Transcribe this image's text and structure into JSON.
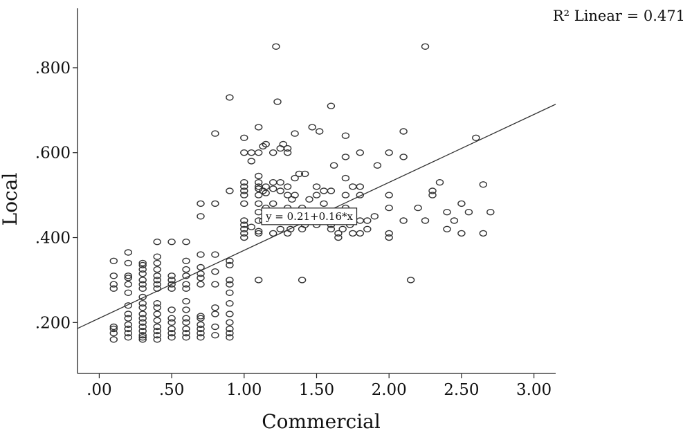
{
  "chart_data": {
    "type": "scatter",
    "xlabel": "Commercial",
    "ylabel": "Local",
    "xlim": [
      -0.15,
      3.15
    ],
    "ylim": [
      0.08,
      0.94
    ],
    "x_ticks": [
      0,
      0.5,
      1.0,
      1.5,
      2.0,
      2.5,
      3.0
    ],
    "x_tick_labels": [
      ".00",
      ".50",
      "1.00",
      "1.50",
      "2.00",
      "2.50",
      "3.00"
    ],
    "y_ticks": [
      0.2,
      0.4,
      0.6,
      0.8
    ],
    "y_tick_labels": [
      ".200",
      ".400",
      ".600",
      ".800"
    ],
    "grid": false,
    "fit_line": {
      "intercept": 0.21,
      "slope": 0.16,
      "label": "y = 0.21+0.16*x",
      "label_at": [
        1.45,
        0.45
      ]
    },
    "r2_label": "R² Linear = 0.471",
    "colors": {
      "marker": "#333333",
      "line": "#333333"
    },
    "points": [
      [
        0.1,
        0.16
      ],
      [
        0.1,
        0.175
      ],
      [
        0.1,
        0.185
      ],
      [
        0.1,
        0.19
      ],
      [
        0.1,
        0.28
      ],
      [
        0.1,
        0.29
      ],
      [
        0.1,
        0.31
      ],
      [
        0.1,
        0.345
      ],
      [
        0.2,
        0.165
      ],
      [
        0.2,
        0.175
      ],
      [
        0.2,
        0.185
      ],
      [
        0.2,
        0.195
      ],
      [
        0.2,
        0.21
      ],
      [
        0.2,
        0.22
      ],
      [
        0.2,
        0.24
      ],
      [
        0.2,
        0.27
      ],
      [
        0.2,
        0.29
      ],
      [
        0.2,
        0.305
      ],
      [
        0.2,
        0.31
      ],
      [
        0.2,
        0.34
      ],
      [
        0.2,
        0.365
      ],
      [
        0.3,
        0.16
      ],
      [
        0.3,
        0.165
      ],
      [
        0.3,
        0.17
      ],
      [
        0.3,
        0.18
      ],
      [
        0.3,
        0.19
      ],
      [
        0.3,
        0.2
      ],
      [
        0.3,
        0.21
      ],
      [
        0.3,
        0.22
      ],
      [
        0.3,
        0.235
      ],
      [
        0.3,
        0.245
      ],
      [
        0.3,
        0.26
      ],
      [
        0.3,
        0.28
      ],
      [
        0.3,
        0.29
      ],
      [
        0.3,
        0.3
      ],
      [
        0.3,
        0.315
      ],
      [
        0.3,
        0.325
      ],
      [
        0.3,
        0.335
      ],
      [
        0.3,
        0.34
      ],
      [
        0.4,
        0.16
      ],
      [
        0.4,
        0.17
      ],
      [
        0.4,
        0.18
      ],
      [
        0.4,
        0.19
      ],
      [
        0.4,
        0.205
      ],
      [
        0.4,
        0.22
      ],
      [
        0.4,
        0.235
      ],
      [
        0.4,
        0.245
      ],
      [
        0.4,
        0.28
      ],
      [
        0.4,
        0.29
      ],
      [
        0.4,
        0.3
      ],
      [
        0.4,
        0.31
      ],
      [
        0.4,
        0.325
      ],
      [
        0.4,
        0.34
      ],
      [
        0.4,
        0.355
      ],
      [
        0.4,
        0.39
      ],
      [
        0.5,
        0.165
      ],
      [
        0.5,
        0.175
      ],
      [
        0.5,
        0.185
      ],
      [
        0.5,
        0.2
      ],
      [
        0.5,
        0.21
      ],
      [
        0.5,
        0.23
      ],
      [
        0.5,
        0.28
      ],
      [
        0.5,
        0.29
      ],
      [
        0.5,
        0.3
      ],
      [
        0.5,
        0.31
      ],
      [
        0.5,
        0.39
      ],
      [
        0.6,
        0.165
      ],
      [
        0.6,
        0.175
      ],
      [
        0.6,
        0.185
      ],
      [
        0.6,
        0.2
      ],
      [
        0.6,
        0.21
      ],
      [
        0.6,
        0.23
      ],
      [
        0.6,
        0.25
      ],
      [
        0.6,
        0.28
      ],
      [
        0.6,
        0.29
      ],
      [
        0.6,
        0.31
      ],
      [
        0.6,
        0.325
      ],
      [
        0.6,
        0.345
      ],
      [
        0.6,
        0.39
      ],
      [
        0.7,
        0.165
      ],
      [
        0.7,
        0.175
      ],
      [
        0.7,
        0.185
      ],
      [
        0.7,
        0.195
      ],
      [
        0.7,
        0.21
      ],
      [
        0.7,
        0.215
      ],
      [
        0.7,
        0.29
      ],
      [
        0.7,
        0.305
      ],
      [
        0.7,
        0.315
      ],
      [
        0.7,
        0.33
      ],
      [
        0.7,
        0.36
      ],
      [
        0.7,
        0.45
      ],
      [
        0.7,
        0.48
      ],
      [
        0.8,
        0.17
      ],
      [
        0.8,
        0.19
      ],
      [
        0.8,
        0.22
      ],
      [
        0.8,
        0.235
      ],
      [
        0.8,
        0.29
      ],
      [
        0.8,
        0.32
      ],
      [
        0.8,
        0.36
      ],
      [
        0.8,
        0.48
      ],
      [
        0.8,
        0.645
      ],
      [
        0.9,
        0.165
      ],
      [
        0.9,
        0.175
      ],
      [
        0.9,
        0.185
      ],
      [
        0.9,
        0.2
      ],
      [
        0.9,
        0.22
      ],
      [
        0.9,
        0.245
      ],
      [
        0.9,
        0.27
      ],
      [
        0.9,
        0.29
      ],
      [
        0.9,
        0.3
      ],
      [
        0.9,
        0.335
      ],
      [
        0.9,
        0.345
      ],
      [
        0.9,
        0.51
      ],
      [
        0.9,
        0.73
      ],
      [
        1.0,
        0.4
      ],
      [
        1.0,
        0.41
      ],
      [
        1.0,
        0.42
      ],
      [
        1.0,
        0.43
      ],
      [
        1.0,
        0.44
      ],
      [
        1.0,
        0.48
      ],
      [
        1.0,
        0.5
      ],
      [
        1.0,
        0.51
      ],
      [
        1.0,
        0.52
      ],
      [
        1.0,
        0.53
      ],
      [
        1.0,
        0.6
      ],
      [
        1.0,
        0.635
      ],
      [
        1.05,
        0.425
      ],
      [
        1.05,
        0.6
      ],
      [
        1.05,
        0.58
      ],
      [
        1.1,
        0.3
      ],
      [
        1.1,
        0.41
      ],
      [
        1.1,
        0.415
      ],
      [
        1.1,
        0.44
      ],
      [
        1.1,
        0.46
      ],
      [
        1.1,
        0.48
      ],
      [
        1.1,
        0.5
      ],
      [
        1.1,
        0.515
      ],
      [
        1.1,
        0.52
      ],
      [
        1.1,
        0.53
      ],
      [
        1.1,
        0.545
      ],
      [
        1.1,
        0.6
      ],
      [
        1.1,
        0.66
      ],
      [
        1.13,
        0.44
      ],
      [
        1.13,
        0.51
      ],
      [
        1.13,
        0.615
      ],
      [
        1.15,
        0.47
      ],
      [
        1.15,
        0.505
      ],
      [
        1.15,
        0.52
      ],
      [
        1.15,
        0.62
      ],
      [
        1.2,
        0.41
      ],
      [
        1.2,
        0.45
      ],
      [
        1.2,
        0.48
      ],
      [
        1.2,
        0.515
      ],
      [
        1.2,
        0.53
      ],
      [
        1.2,
        0.6
      ],
      [
        1.22,
        0.85
      ],
      [
        1.23,
        0.72
      ],
      [
        1.25,
        0.42
      ],
      [
        1.25,
        0.51
      ],
      [
        1.25,
        0.53
      ],
      [
        1.25,
        0.61
      ],
      [
        1.27,
        0.62
      ],
      [
        1.3,
        0.41
      ],
      [
        1.3,
        0.47
      ],
      [
        1.3,
        0.5
      ],
      [
        1.3,
        0.52
      ],
      [
        1.3,
        0.6
      ],
      [
        1.3,
        0.61
      ],
      [
        1.32,
        0.42
      ],
      [
        1.33,
        0.49
      ],
      [
        1.35,
        0.5
      ],
      [
        1.35,
        0.54
      ],
      [
        1.35,
        0.645
      ],
      [
        1.38,
        0.55
      ],
      [
        1.4,
        0.3
      ],
      [
        1.4,
        0.42
      ],
      [
        1.4,
        0.47
      ],
      [
        1.42,
        0.43
      ],
      [
        1.42,
        0.55
      ],
      [
        1.45,
        0.49
      ],
      [
        1.47,
        0.66
      ],
      [
        1.5,
        0.43
      ],
      [
        1.5,
        0.45
      ],
      [
        1.5,
        0.5
      ],
      [
        1.5,
        0.52
      ],
      [
        1.52,
        0.65
      ],
      [
        1.55,
        0.48
      ],
      [
        1.55,
        0.51
      ],
      [
        1.6,
        0.42
      ],
      [
        1.6,
        0.43
      ],
      [
        1.6,
        0.46
      ],
      [
        1.6,
        0.51
      ],
      [
        1.6,
        0.71
      ],
      [
        1.62,
        0.57
      ],
      [
        1.65,
        0.4
      ],
      [
        1.65,
        0.41
      ],
      [
        1.68,
        0.42
      ],
      [
        1.7,
        0.44
      ],
      [
        1.7,
        0.47
      ],
      [
        1.7,
        0.5
      ],
      [
        1.7,
        0.54
      ],
      [
        1.7,
        0.59
      ],
      [
        1.7,
        0.64
      ],
      [
        1.73,
        0.43
      ],
      [
        1.75,
        0.41
      ],
      [
        1.75,
        0.45
      ],
      [
        1.75,
        0.52
      ],
      [
        1.8,
        0.41
      ],
      [
        1.8,
        0.44
      ],
      [
        1.8,
        0.5
      ],
      [
        1.8,
        0.52
      ],
      [
        1.8,
        0.6
      ],
      [
        1.85,
        0.42
      ],
      [
        1.85,
        0.44
      ],
      [
        1.9,
        0.45
      ],
      [
        1.92,
        0.57
      ],
      [
        2.0,
        0.4
      ],
      [
        2.0,
        0.41
      ],
      [
        2.0,
        0.47
      ],
      [
        2.0,
        0.5
      ],
      [
        2.0,
        0.6
      ],
      [
        2.1,
        0.44
      ],
      [
        2.1,
        0.59
      ],
      [
        2.1,
        0.65
      ],
      [
        2.15,
        0.3
      ],
      [
        2.2,
        0.47
      ],
      [
        2.25,
        0.44
      ],
      [
        2.25,
        0.85
      ],
      [
        2.3,
        0.5
      ],
      [
        2.3,
        0.51
      ],
      [
        2.35,
        0.53
      ],
      [
        2.4,
        0.42
      ],
      [
        2.4,
        0.46
      ],
      [
        2.45,
        0.44
      ],
      [
        2.5,
        0.41
      ],
      [
        2.5,
        0.48
      ],
      [
        2.55,
        0.46
      ],
      [
        2.6,
        0.635
      ],
      [
        2.65,
        0.41
      ],
      [
        2.65,
        0.525
      ],
      [
        2.7,
        0.46
      ]
    ]
  }
}
